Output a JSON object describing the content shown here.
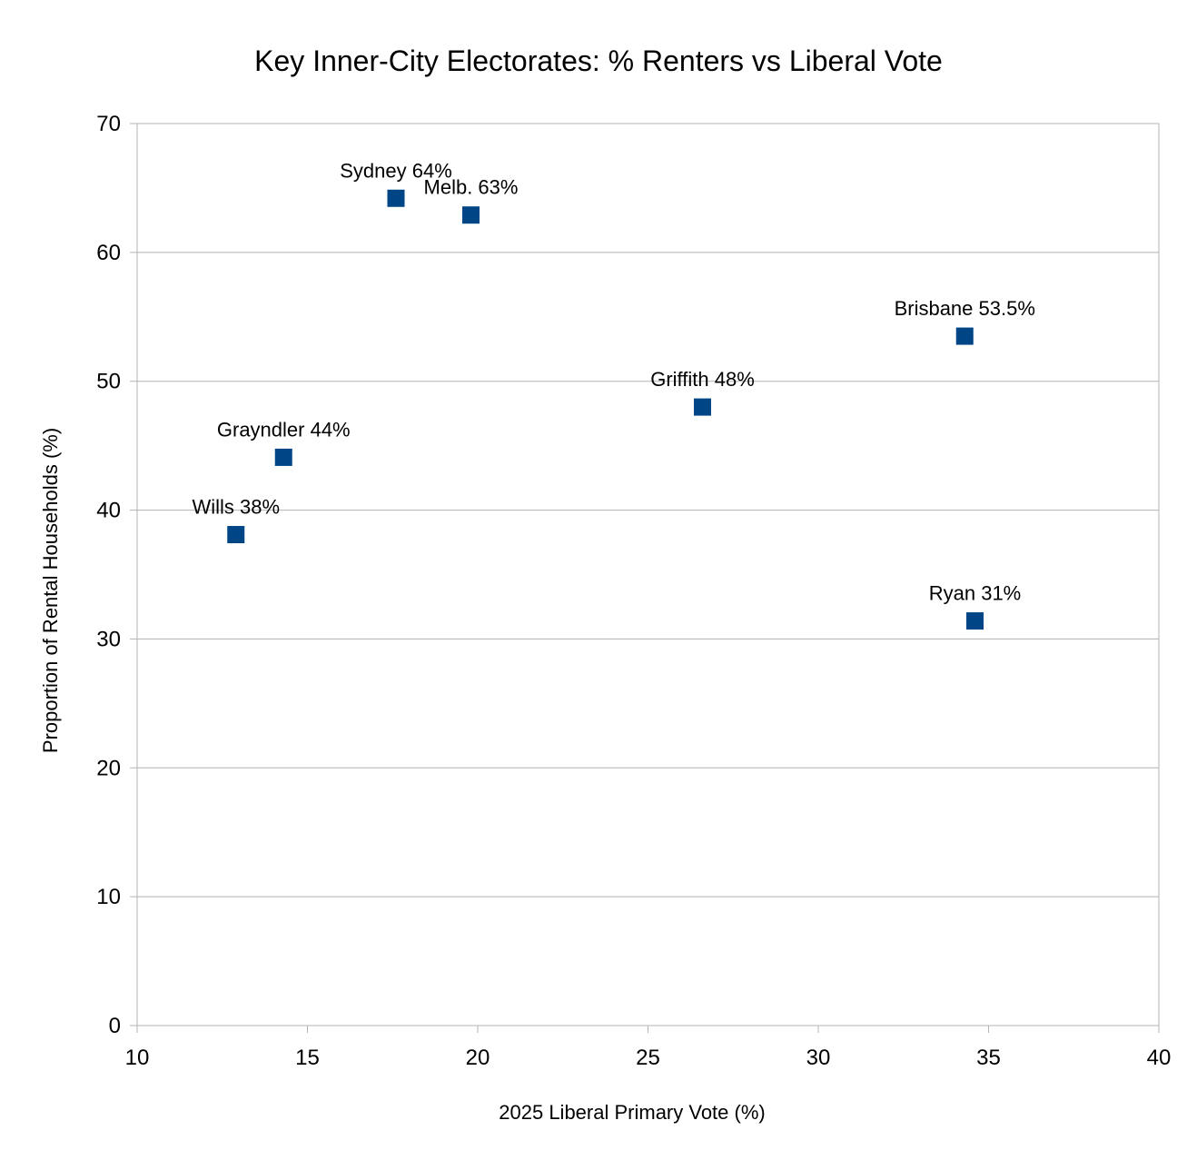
{
  "chart_data": {
    "type": "scatter",
    "title": "Key Inner-City Electorates: % Renters vs Liberal Vote",
    "xlabel": "2025 Liberal Primary Vote (%)",
    "ylabel": "Proportion of Rental Households (%)",
    "xlim": [
      10,
      40
    ],
    "ylim": [
      0,
      70
    ],
    "xticks": [
      10,
      15,
      20,
      25,
      30,
      35,
      40
    ],
    "yticks": [
      0,
      10,
      20,
      30,
      40,
      50,
      60,
      70
    ],
    "grid": "horizontal",
    "legend": "none",
    "marker_color": "#004586",
    "points": [
      {
        "label": "Sydney 64%",
        "x": 17.6,
        "y": 64.2
      },
      {
        "label": "Melb. 63%",
        "x": 19.8,
        "y": 62.9
      },
      {
        "label": "Brisbane 53.5%",
        "x": 34.3,
        "y": 53.5
      },
      {
        "label": "Griffith 48%",
        "x": 26.6,
        "y": 48.0
      },
      {
        "label": "Grayndler 44%",
        "x": 14.3,
        "y": 44.1
      },
      {
        "label": "Wills 38%",
        "x": 12.9,
        "y": 38.1
      },
      {
        "label": "Ryan 31%",
        "x": 34.6,
        "y": 31.4
      }
    ]
  }
}
